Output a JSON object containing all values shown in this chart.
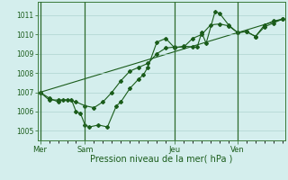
{
  "xlabel": "Pression niveau de la mer( hPa )",
  "background_color": "#d4eeed",
  "grid_color": "#aed4d0",
  "line_color": "#1a5c1a",
  "day_labels": [
    "Mer",
    "Sam",
    "Jeu",
    "Ven"
  ],
  "day_positions": [
    0,
    5,
    15,
    22
  ],
  "xlim": [
    -0.3,
    27.3
  ],
  "ylim": [
    1004.5,
    1011.7
  ],
  "yticks": [
    1005,
    1006,
    1007,
    1008,
    1009,
    1010,
    1011
  ],
  "series1_x": [
    0,
    1,
    2,
    2.5,
    3.5,
    4,
    4.5,
    5,
    5.5,
    6.5,
    7.5,
    8.5,
    9,
    10,
    11,
    11.5,
    12,
    13,
    14,
    15,
    16,
    17,
    17.5,
    18,
    18.5,
    19.5,
    20,
    21,
    22,
    23,
    24,
    25,
    26,
    27
  ],
  "series1_y": [
    1007.0,
    1006.7,
    1006.5,
    1006.6,
    1006.6,
    1006.0,
    1005.9,
    1005.3,
    1005.2,
    1005.3,
    1005.2,
    1006.3,
    1006.5,
    1007.2,
    1007.7,
    1007.9,
    1008.3,
    1009.6,
    1009.8,
    1009.3,
    1009.4,
    1009.35,
    1009.35,
    1010.1,
    1009.55,
    1011.2,
    1011.1,
    1010.5,
    1010.1,
    1010.15,
    1009.9,
    1010.5,
    1010.7,
    1010.8
  ],
  "series2_x": [
    0,
    1,
    2,
    3,
    4,
    5,
    6,
    7,
    8,
    9,
    10,
    11,
    12,
    13,
    14,
    15,
    16,
    17,
    18,
    19,
    20,
    21,
    22,
    23,
    24,
    25,
    26,
    27
  ],
  "series2_y": [
    1007.0,
    1006.6,
    1006.6,
    1006.6,
    1006.5,
    1006.3,
    1006.2,
    1006.5,
    1007.0,
    1007.6,
    1008.1,
    1008.3,
    1008.5,
    1009.0,
    1009.3,
    1009.35,
    1009.35,
    1009.8,
    1010.0,
    1010.5,
    1010.55,
    1010.45,
    1010.1,
    1010.15,
    1009.9,
    1010.4,
    1010.6,
    1010.8
  ],
  "series3_x": [
    0,
    27
  ],
  "series3_y": [
    1007.0,
    1010.8
  ],
  "marker_size": 2.0,
  "linewidth": 0.8
}
